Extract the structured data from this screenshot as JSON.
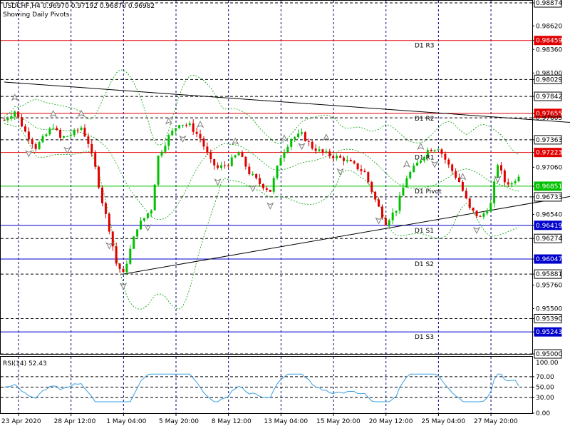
{
  "header": {
    "symbol_line": "USDCHF,H4  0.96970 0.97192 0.96870 0.96982",
    "subtitle": "Showing Daily Pivots."
  },
  "rsi_header": "RSI(14) 52.43",
  "colors": {
    "bullish": "#00c000",
    "bearish": "#e00000",
    "resistance": "#e00000",
    "pivot": "#00c000",
    "support": "#0000cc",
    "trendline": "#000000",
    "envelope": "#00a000",
    "grid": "#000080",
    "rsi_line": "#3aa0e0"
  },
  "icons": {
    "fractal_up": "fractal-up-arrow",
    "fractal_down": "fractal-down-arrow"
  },
  "chart_data": {
    "type": "candlestick",
    "symbol": "USDCHF",
    "timeframe": "H4",
    "ohlc_last": {
      "open": 0.9697,
      "high": 0.97192,
      "low": 0.9687,
      "close": 0.96982
    },
    "price_axis": {
      "ylim": [
        0.95,
        0.98874
      ],
      "tick_labels": [
        {
          "value": 0.98874,
          "label": "0.98874",
          "style": "boxed"
        },
        {
          "value": 0.9862,
          "label": "0.98620",
          "style": "plain"
        },
        {
          "value": 0.98459,
          "label": "0.98459",
          "style": "red"
        },
        {
          "value": 0.9836,
          "label": "0.98360",
          "style": "plain"
        },
        {
          "value": 0.981,
          "label": "0.98100",
          "style": "plain"
        },
        {
          "value": 0.98029,
          "label": "0.98029",
          "style": "boxed"
        },
        {
          "value": 0.97842,
          "label": "0.97842",
          "style": "boxed"
        },
        {
          "value": 0.97655,
          "label": "0.97655",
          "style": "red"
        },
        {
          "value": 0.97605,
          "label": "0.97605",
          "style": "plain"
        },
        {
          "value": 0.97363,
          "label": "0.97363",
          "style": "boxed"
        },
        {
          "value": 0.97223,
          "label": "0.97223",
          "style": "red"
        },
        {
          "value": 0.9706,
          "label": "0.97060",
          "style": "plain"
        },
        {
          "value": 0.96851,
          "label": "0.96851",
          "style": "green"
        },
        {
          "value": 0.96733,
          "label": "0.96733",
          "style": "boxed"
        },
        {
          "value": 0.9654,
          "label": "0.96540",
          "style": "plain"
        },
        {
          "value": 0.96419,
          "label": "0.96419",
          "style": "blue"
        },
        {
          "value": 0.96274,
          "label": "0.96274",
          "style": "boxed"
        },
        {
          "value": 0.96047,
          "label": "0.96047",
          "style": "blue"
        },
        {
          "value": 0.95881,
          "label": "0.95881",
          "style": "boxed"
        },
        {
          "value": 0.9576,
          "label": "0.95760",
          "style": "plain"
        },
        {
          "value": 0.955,
          "label": "0.95500",
          "style": "plain"
        },
        {
          "value": 0.9539,
          "label": "0.95390",
          "style": "boxed"
        },
        {
          "value": 0.95243,
          "label": "0.95243",
          "style": "blue"
        },
        {
          "value": 0.95,
          "label": "0.95000",
          "style": "boxed"
        }
      ]
    },
    "dashed_levels": [
      0.98874,
      0.98029,
      0.97842,
      0.97605,
      0.97363,
      0.96733,
      0.96274,
      0.95881,
      0.9539,
      0.95
    ],
    "pivots": [
      {
        "name": "D1 R3",
        "value": 0.98459,
        "kind": "resistance"
      },
      {
        "name": "D1 R2",
        "value": 0.97655,
        "kind": "resistance"
      },
      {
        "name": "D1 R1",
        "value": 0.97223,
        "kind": "resistance"
      },
      {
        "name": "D1 Pivot",
        "value": 0.96851,
        "kind": "pivot"
      },
      {
        "name": "D1 S1",
        "value": 0.96419,
        "kind": "support"
      },
      {
        "name": "D1 S2",
        "value": 0.96047,
        "kind": "support"
      },
      {
        "name": "D1 S3",
        "value": 0.95243,
        "kind": "support"
      }
    ],
    "time_axis": {
      "bars": 148,
      "labels": [
        {
          "bar": 0,
          "label": "23 Apr 2020"
        },
        {
          "bar": 15,
          "label": "28 Apr 12:00"
        },
        {
          "bar": 30,
          "label": "1 May 04:00"
        },
        {
          "bar": 45,
          "label": "5 May 20:00"
        },
        {
          "bar": 60,
          "label": "8 May 12:00"
        },
        {
          "bar": 75,
          "label": "13 May 04:00"
        },
        {
          "bar": 90,
          "label": "15 May 20:00"
        },
        {
          "bar": 105,
          "label": "20 May 12:00"
        },
        {
          "bar": 120,
          "label": "25 May 04:00"
        },
        {
          "bar": 135,
          "label": "27 May 20:00"
        }
      ]
    },
    "close_path_keypoints": [
      [
        0,
        0.9758
      ],
      [
        3,
        0.9768
      ],
      [
        6,
        0.9745
      ],
      [
        9,
        0.9728
      ],
      [
        12,
        0.9742
      ],
      [
        14,
        0.9752
      ],
      [
        16,
        0.9738
      ],
      [
        19,
        0.9742
      ],
      [
        22,
        0.975
      ],
      [
        24,
        0.9733
      ],
      [
        26,
        0.9705
      ],
      [
        28,
        0.9668
      ],
      [
        30,
        0.9638
      ],
      [
        32,
        0.96
      ],
      [
        34,
        0.9588
      ],
      [
        36,
        0.9615
      ],
      [
        38,
        0.964
      ],
      [
        40,
        0.965
      ],
      [
        42,
        0.966
      ],
      [
        44,
        0.9718
      ],
      [
        47,
        0.974
      ],
      [
        50,
        0.9755
      ],
      [
        53,
        0.9752
      ],
      [
        56,
        0.9738
      ],
      [
        59,
        0.9712
      ],
      [
        61,
        0.9705
      ],
      [
        64,
        0.971
      ],
      [
        67,
        0.9722
      ],
      [
        70,
        0.97
      ],
      [
        73,
        0.9688
      ],
      [
        76,
        0.968
      ],
      [
        79,
        0.9718
      ],
      [
        82,
        0.9738
      ],
      [
        85,
        0.9742
      ],
      [
        88,
        0.9728
      ],
      [
        91,
        0.9722
      ],
      [
        94,
        0.9718
      ],
      [
        97,
        0.9715
      ],
      [
        100,
        0.9708
      ],
      [
        103,
        0.97
      ],
      [
        106,
        0.967
      ],
      [
        109,
        0.9645
      ],
      [
        112,
        0.966
      ],
      [
        115,
        0.9695
      ],
      [
        118,
        0.971
      ],
      [
        121,
        0.9725
      ],
      [
        124,
        0.9728
      ],
      [
        127,
        0.9708
      ],
      [
        130,
        0.969
      ],
      [
        133,
        0.966
      ],
      [
        136,
        0.965
      ],
      [
        139,
        0.9665
      ],
      [
        141,
        0.971
      ],
      [
        143,
        0.969
      ],
      [
        145,
        0.9688
      ],
      [
        147,
        0.9698
      ]
    ],
    "trendlines": [
      {
        "name": "upper",
        "from": {
          "bar": 0,
          "price": 0.98
        },
        "to": {
          "bar": 180,
          "price": 0.97505
        }
      },
      {
        "name": "lower",
        "from": {
          "bar": 34,
          "price": 0.95881
        },
        "to": {
          "bar": 180,
          "price": 0.9686
        }
      }
    ],
    "fractals_up_bars": [
      3,
      14,
      22,
      47,
      56,
      66,
      80,
      92,
      115,
      119,
      131
    ],
    "fractals_down_bars": [
      7,
      18,
      30,
      34,
      41,
      51,
      61,
      71,
      76,
      85,
      96,
      107,
      123,
      135,
      141
    ]
  },
  "rsi": {
    "period": 14,
    "current": 52.43,
    "ylim": [
      0,
      100
    ],
    "tick_labels": [
      {
        "value": 70,
        "label": "70.00"
      },
      {
        "value": 50,
        "label": "50.00"
      },
      {
        "value": 30,
        "label": "30.00"
      },
      {
        "value": 0,
        "label": "0.00"
      }
    ],
    "top_label": "100.00",
    "dashed_levels": [
      70,
      50,
      30
    ]
  }
}
